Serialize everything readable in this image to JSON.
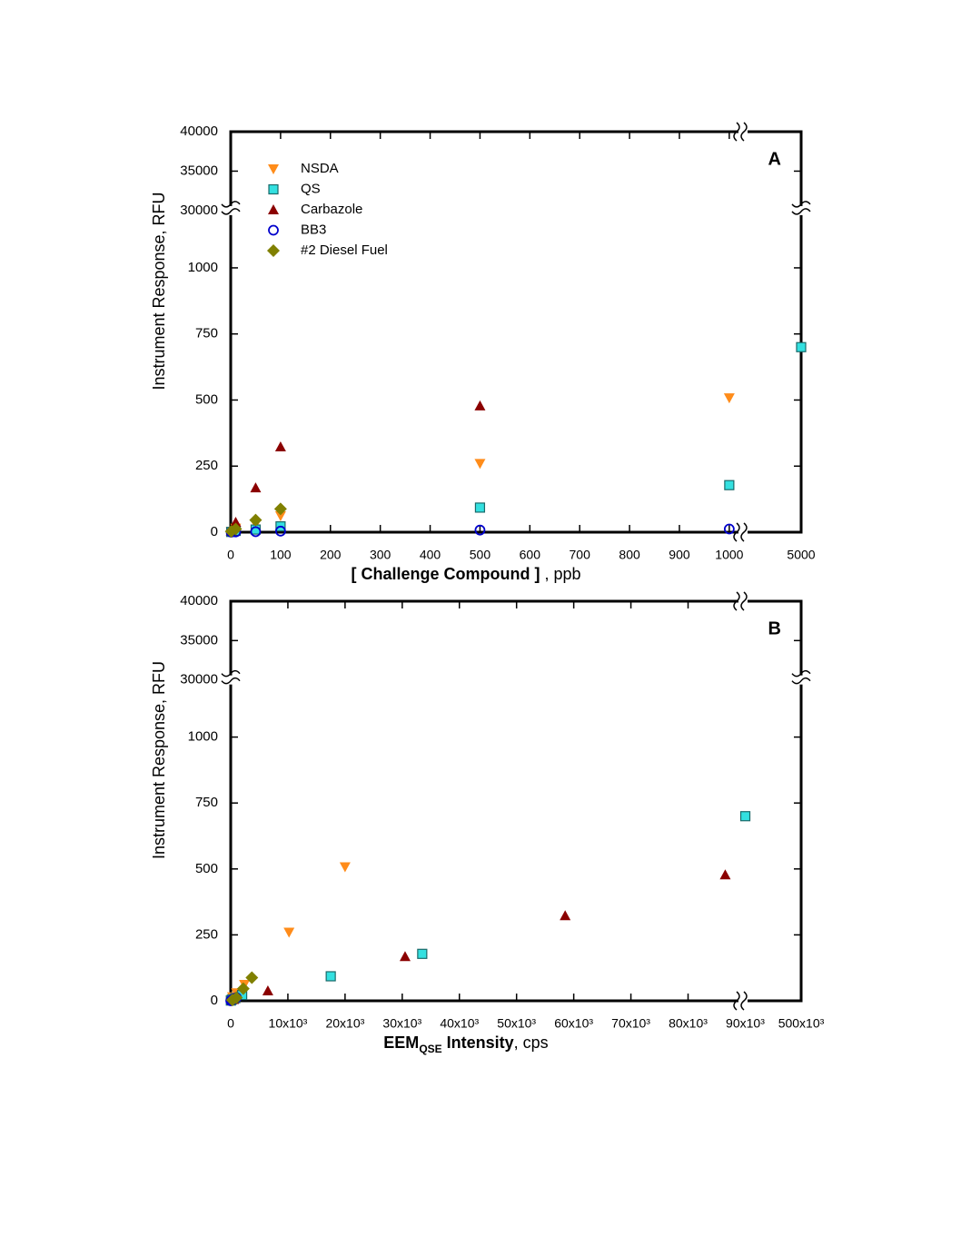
{
  "chart_data": [
    {
      "type": "scatter",
      "annotation": "A",
      "xlabel": [
        {
          "text": "[ Challenge Compound ]",
          "style": "bold"
        },
        {
          "text": " , ppb",
          "style": "normal"
        }
      ],
      "ylabel": "Instrument Response, RFU",
      "xlim": [
        0,
        5000
      ],
      "x_break": [
        1000,
        5000
      ],
      "xticks": [
        0,
        100,
        200,
        300,
        400,
        500,
        600,
        700,
        800,
        900,
        1000,
        5000
      ],
      "ylim": [
        0,
        40000
      ],
      "y_break": [
        1000,
        30000
      ],
      "yticks": [
        0,
        250,
        500,
        750,
        1000,
        30000,
        35000,
        40000
      ],
      "legend": "upper left",
      "series": [
        {
          "name": "NSDA",
          "color": "#ff8c1a",
          "marker": "triangle-down",
          "x": [
            1,
            10,
            50,
            100,
            500,
            1000
          ],
          "values": [
            2,
            15,
            30,
            62,
            260,
            508
          ]
        },
        {
          "name": "QS",
          "color": "#33e0e0",
          "marker": "square",
          "x": [
            1,
            10,
            50,
            100,
            500,
            1000,
            5000
          ],
          "values": [
            1,
            5,
            10,
            22,
            93,
            178,
            700
          ]
        },
        {
          "name": "Carbazole",
          "color": "#8b0000",
          "marker": "triangle-up",
          "x": [
            1,
            10,
            50,
            100,
            500
          ],
          "values": [
            5,
            38,
            168,
            323,
            478
          ]
        },
        {
          "name": "BB3",
          "color": "#0000cc",
          "marker": "circle-open",
          "x": [
            1,
            10,
            50,
            100,
            500,
            1000
          ],
          "values": [
            0,
            1,
            2,
            4,
            8,
            12
          ]
        },
        {
          "name": "#2 Diesel Fuel",
          "color": "#808000",
          "marker": "diamond",
          "x": [
            1,
            10,
            50,
            100
          ],
          "values": [
            3,
            12,
            46,
            88
          ]
        }
      ]
    },
    {
      "type": "scatter",
      "annotation": "B",
      "xlabel": [
        {
          "text": "EEM",
          "style": "bold"
        },
        {
          "text": "QSE",
          "style": "bold-sub"
        },
        {
          "text": " Intensity",
          "style": "bold"
        },
        {
          "text": ", cps",
          "style": "normal"
        }
      ],
      "ylabel": "Instrument Response, RFU",
      "xlim": [
        0,
        500000
      ],
      "x_break": [
        90000,
        500000
      ],
      "xticks": [
        0,
        {
          "value": 10000,
          "label": "10x10³"
        },
        {
          "value": 20000,
          "label": "20x10³"
        },
        {
          "value": 30000,
          "label": "30x10³"
        },
        {
          "value": 40000,
          "label": "40x10³"
        },
        {
          "value": 50000,
          "label": "50x10³"
        },
        {
          "value": 60000,
          "label": "60x10³"
        },
        {
          "value": 70000,
          "label": "70x10³"
        },
        {
          "value": 80000,
          "label": "80x10³"
        },
        {
          "value": 90000,
          "label": "90x10³"
        },
        {
          "value": 500000,
          "label": "500x10³"
        }
      ],
      "ylim": [
        0,
        40000
      ],
      "y_break": [
        1000,
        30000
      ],
      "yticks": [
        0,
        250,
        500,
        750,
        1000,
        30000,
        35000,
        40000
      ],
      "series": [
        {
          "color": "#ff8c1a",
          "marker": "triangle-down",
          "x": [
            50,
            300,
            1000,
            2400,
            10200,
            20000
          ],
          "values": [
            2,
            15,
            30,
            62,
            260,
            508
          ]
        },
        {
          "color": "#33e0e0",
          "marker": "square",
          "x": [
            30,
            200,
            800,
            2000,
            17500,
            33500,
            90500
          ],
          "values": [
            1,
            5,
            10,
            22,
            93,
            178,
            700
          ]
        },
        {
          "color": "#8b0000",
          "marker": "triangle-up",
          "x": [
            500,
            6500,
            30500,
            58500,
            86500
          ],
          "values": [
            5,
            38,
            168,
            323,
            478
          ]
        },
        {
          "color": "#0000cc",
          "marker": "circle-open",
          "x": [
            10,
            50,
            100,
            300,
            600,
            1000
          ],
          "values": [
            0,
            1,
            2,
            4,
            8,
            12
          ]
        },
        {
          "color": "#808000",
          "marker": "diamond",
          "x": [
            300,
            1000,
            2200,
            3700
          ],
          "values": [
            3,
            12,
            46,
            88
          ]
        }
      ]
    }
  ]
}
